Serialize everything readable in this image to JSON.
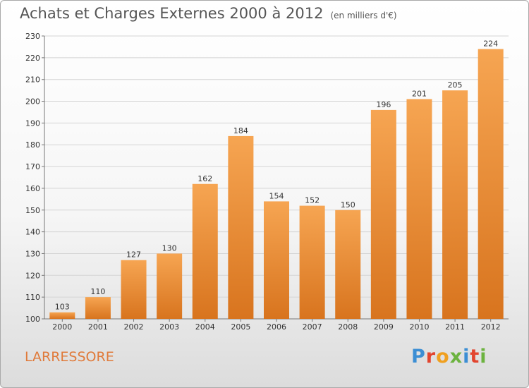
{
  "header": {
    "title": "Achats et Charges Externes 2000 à 2012",
    "subtitle": "(en milliers d'€)"
  },
  "footer": {
    "city": "LARRESSORE",
    "brand": "Proxiti"
  },
  "colors": {
    "bar_light": "#f6a552",
    "bar_dark": "#d8741e",
    "grid": "#d4d4d4",
    "city_text": "#e07a3a"
  },
  "chart_data": {
    "type": "bar",
    "title": "Achats et Charges Externes 2000 à 2012",
    "subtitle": "(en milliers d'€)",
    "categories": [
      "2000",
      "2001",
      "2002",
      "2003",
      "2004",
      "2005",
      "2006",
      "2007",
      "2008",
      "2009",
      "2010",
      "2011",
      "2012"
    ],
    "values": [
      103,
      110,
      127,
      130,
      162,
      184,
      154,
      152,
      150,
      196,
      201,
      205,
      224
    ],
    "ylim": [
      100,
      230
    ],
    "yticks": [
      100,
      110,
      120,
      130,
      140,
      150,
      160,
      170,
      180,
      190,
      200,
      210,
      220,
      230
    ],
    "grid": true,
    "data_labels": true,
    "xlabel": "",
    "ylabel": ""
  }
}
